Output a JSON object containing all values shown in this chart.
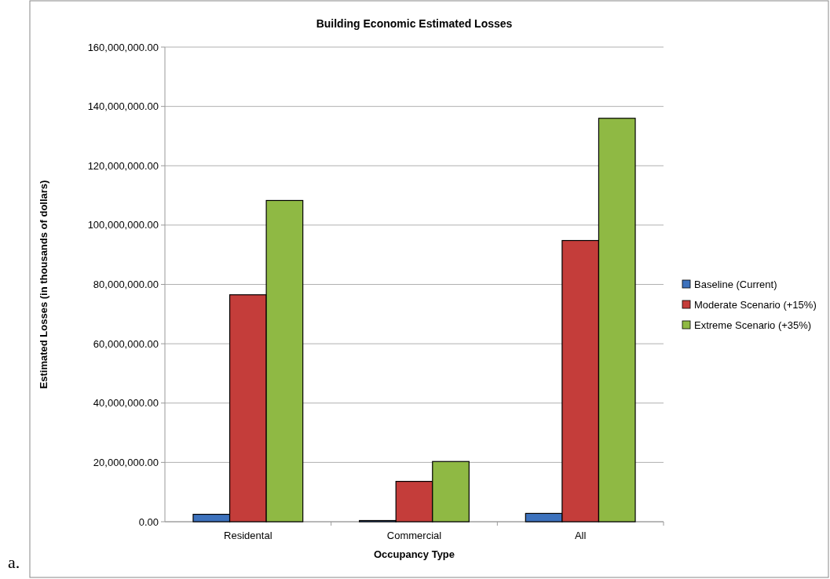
{
  "chart_data": {
    "type": "bar",
    "title": "Building Economic Estimated Losses",
    "xlabel": "Occupancy Type",
    "ylabel": "Estimated Losses (in thousands of dollars)",
    "categories": [
      "Residental",
      "Commercial",
      "All"
    ],
    "series": [
      {
        "name": "Baseline (Current)",
        "color": "#3d72bd",
        "values": [
          2500000,
          400000,
          2800000
        ]
      },
      {
        "name": "Moderate Scenario (+15%)",
        "color": "#c43d3a",
        "values": [
          76500000,
          13600000,
          94800000
        ]
      },
      {
        "name": "Extreme Scenario (+35%)",
        "color": "#8fb944",
        "values": [
          108300000,
          20300000,
          136000000
        ]
      }
    ],
    "ylim": [
      0,
      160000000
    ],
    "yticks": [
      {
        "value": 0,
        "label": "0.00"
      },
      {
        "value": 20000000,
        "label": "20,000,000.00"
      },
      {
        "value": 40000000,
        "label": "40,000,000.00"
      },
      {
        "value": 60000000,
        "label": "60,000,000.00"
      },
      {
        "value": 80000000,
        "label": "80,000,000.00"
      },
      {
        "value": 100000000,
        "label": "100,000,000.00"
      },
      {
        "value": 120000000,
        "label": "120,000,000.00"
      },
      {
        "value": 140000000,
        "label": "140,000,000.00"
      },
      {
        "value": 160000000,
        "label": "160,000,000.00"
      }
    ],
    "grid": "y",
    "legend": "right",
    "annotations": [
      "a."
    ]
  }
}
